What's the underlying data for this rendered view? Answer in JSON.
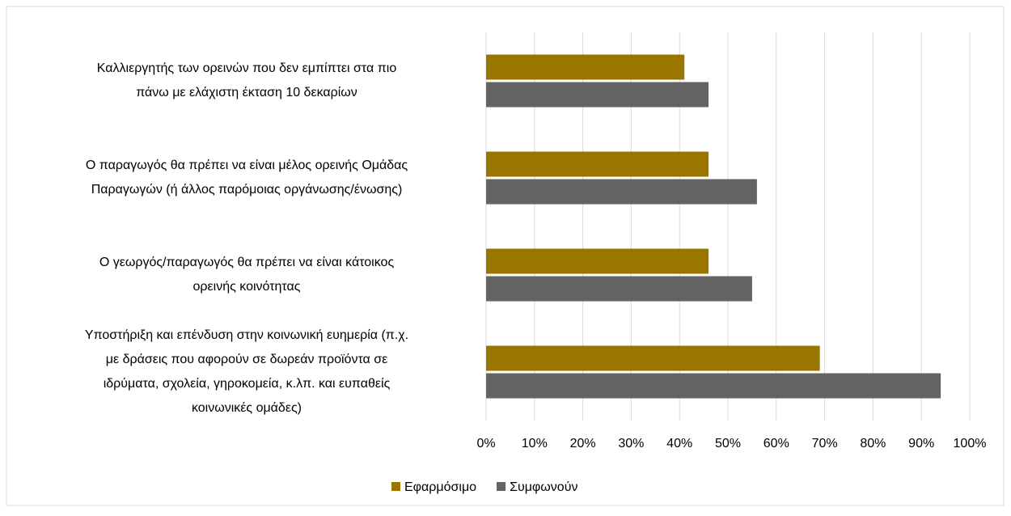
{
  "chart_data": {
    "type": "bar",
    "orientation": "horizontal",
    "categories": [
      [
        "Καλλιεργητής των ορεινών που δεν εμπίπτει στα πιο",
        "πάνω με ελάχιστη έκταση 10 δεκαρίων"
      ],
      [
        "Ο παραγωγός θα πρέπει να είναι μέλος ορεινής Ομάδας",
        "Παραγωγών (ή άλλος παρόμοιας οργάνωσης/ένωσης)"
      ],
      [
        "Ο γεωργός/παραγωγός θα πρέπει να είναι κάτοικος",
        "ορεινής κοινότητας"
      ],
      [
        "Υποστήριξη και επένδυση στην κοινωνική ευημερία (π.χ.",
        "με δράσεις που αφορούν σε δωρεάν προϊόντα σε",
        "ιδρύματα, σχολεία, γηροκομεία, κ.λπ. και ευπαθείς",
        "κοινωνικές ομάδες)"
      ]
    ],
    "series": [
      {
        "name": "Εφαρμόσιμο",
        "color": "#9a7500",
        "values": [
          41,
          46,
          46,
          69
        ]
      },
      {
        "name": "Συμφωνούν",
        "color": "#636363",
        "values": [
          46,
          56,
          55,
          94
        ]
      }
    ],
    "xlim": [
      0,
      1
    ],
    "xticks": [
      {
        "value": 0,
        "label": "0%"
      },
      {
        "value": 0.1,
        "label": "10%"
      },
      {
        "value": 0.2,
        "label": "20%"
      },
      {
        "value": 0.3,
        "label": "30%"
      },
      {
        "value": 0.4,
        "label": "40%"
      },
      {
        "value": 0.5,
        "label": "50%"
      },
      {
        "value": 0.6,
        "label": "60%"
      },
      {
        "value": 0.7,
        "label": "70%"
      },
      {
        "value": 0.8,
        "label": "80%"
      },
      {
        "value": 0.9,
        "label": "90%"
      },
      {
        "value": 1,
        "label": "100%"
      }
    ],
    "grid": true,
    "legend": "bottom"
  }
}
